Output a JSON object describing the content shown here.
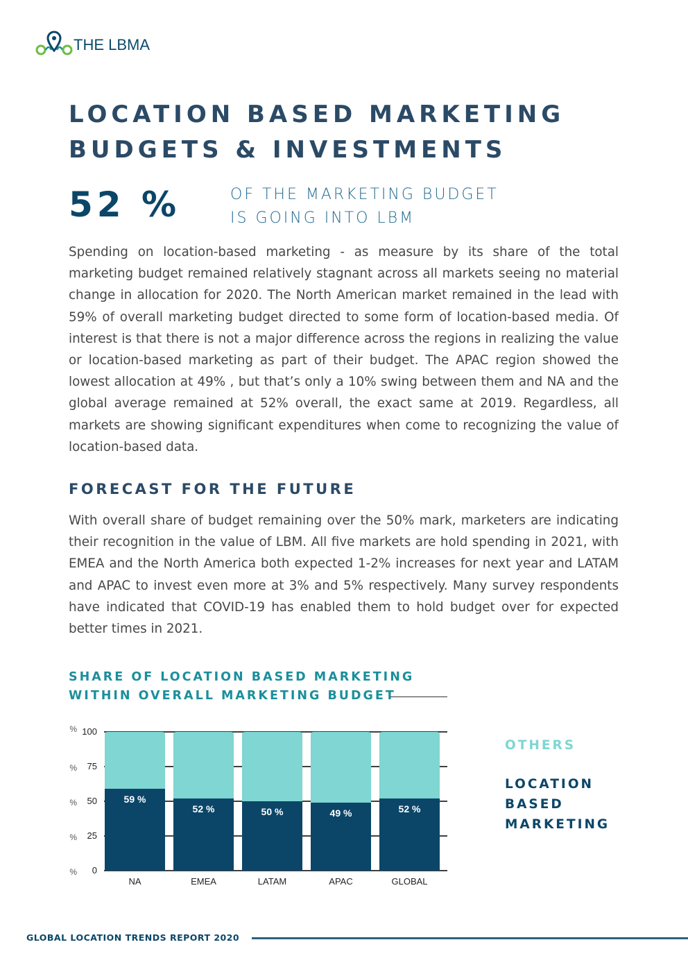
{
  "brand": {
    "name": "THE LBMA",
    "colors": {
      "navy": "#0b4668",
      "teal": "#7fd6d2",
      "green": "#6dbd45",
      "accent": "#1b8f9c"
    }
  },
  "page": {
    "title_lines": [
      "LOCATION BASED MARKETING",
      "BUDGETS & INVESTMENTS"
    ],
    "stat_value": "52 %",
    "stat_caption_lines": [
      "OF THE MARKETING BUDGET",
      "IS GOING INTO LBM"
    ],
    "paragraph1": "Spending on location-based marketing - as measure by its share of the total marketing budget remained relatively stagnant across all markets seeing no material change in allocation for 2020. The North American market remained in the lead with 59% of overall marketing budget directed to some form of location-based media.  Of interest is that there is not a major difference across the regions in realizing the value or location-based marketing as part of their budget.  The APAC region showed the lowest allocation at 49% , but that’s only a 10% swing between them and NA and the global average remained at 52% overall, the exact same at 2019.  Regardless, all markets are showing significant expenditures when come to recognizing the value of location-based data.",
    "section_heading": "FORECAST FOR THE FUTURE",
    "paragraph2": "With overall share of budget remaining over the 50% mark, marketers are indicating their recognition in the value of LBM. All five markets are hold spending in 2021, with EMEA and the North America both expected 1-2% increases for next year and LATAM and APAC to invest even more at 3% and 5% respectively.  Many survey respondents have indicated that COVID-19 has enabled them to hold budget over for expected better times in 2021."
  },
  "chart_data": {
    "type": "bar",
    "stacked": true,
    "title": "SHARE OF LOCATION BASED MARKETING WITHIN OVERALL MARKETING BUDGET",
    "title_lines": [
      "SHARE OF LOCATION BASED MARKETING",
      "WITHIN OVERALL MARKETING BUDGET"
    ],
    "categories": [
      "NA",
      "EMEA",
      "LATAM",
      "APAC",
      "GLOBAL"
    ],
    "series": [
      {
        "name": "LOCATION BASED MARKETING",
        "values": [
          59,
          52,
          50,
          49,
          52
        ],
        "color": "#0b4668"
      },
      {
        "name": "OTHERS",
        "values": [
          41,
          48,
          50,
          51,
          48
        ],
        "color": "#7fd6d2"
      }
    ],
    "data_labels": [
      "59 %",
      "52 %",
      "50 %",
      "49 %",
      "52 %"
    ],
    "y_ticks": [
      0,
      25,
      50,
      75,
      100
    ],
    "y_unit": "%",
    "ylim": [
      0,
      100
    ],
    "xlabel": "",
    "ylabel": "",
    "legend": {
      "position": "right",
      "entries": [
        "OTHERS",
        "LOCATION BASED MARKETING"
      ]
    }
  },
  "legend": {
    "others": "OTHERS",
    "lbm_lines": [
      "LOCATION",
      "BASED",
      "MARKETING"
    ]
  },
  "footer": {
    "text": "GLOBAL LOCATION TRENDS REPORT 2020"
  }
}
